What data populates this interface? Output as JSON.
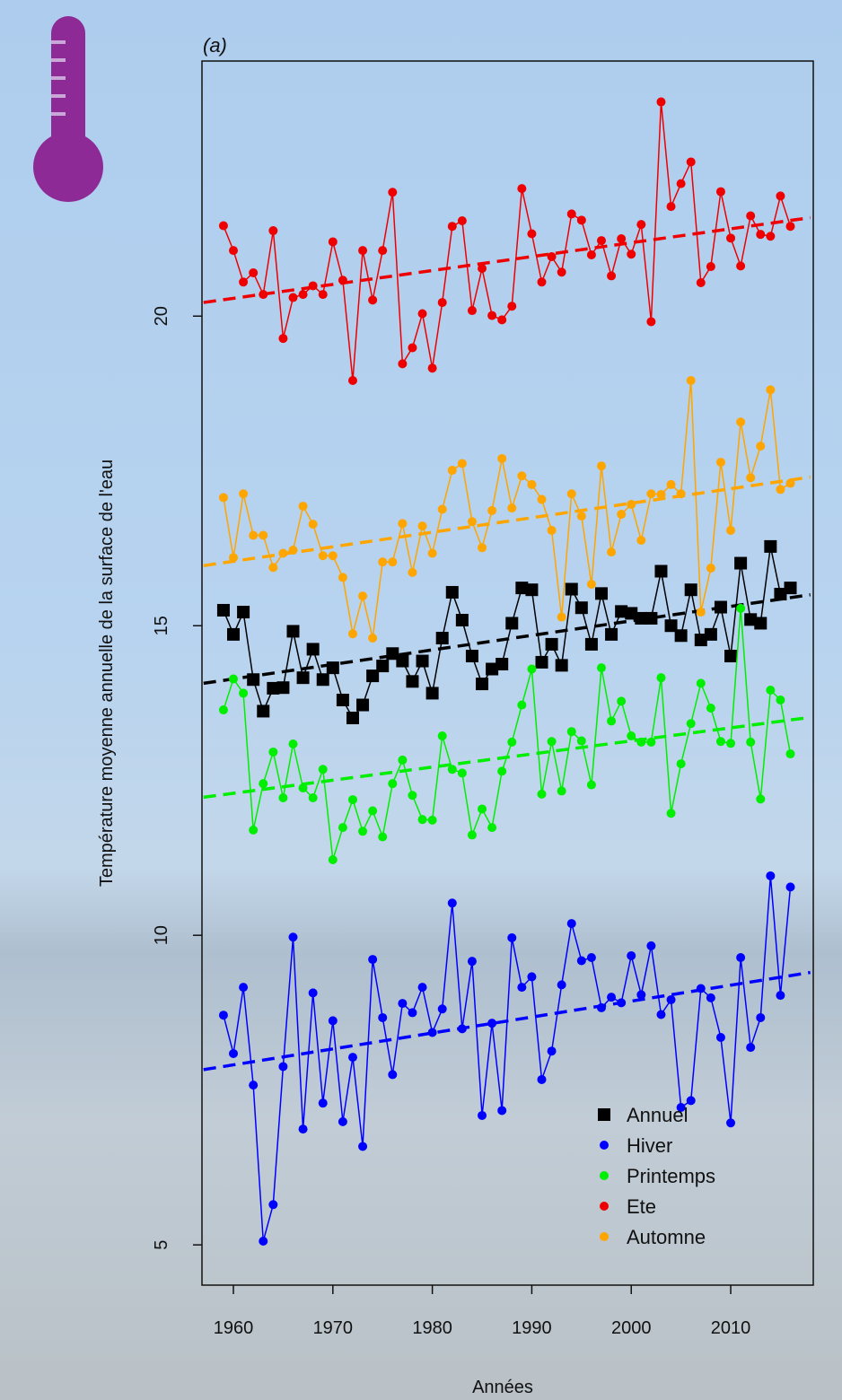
{
  "chart_data": {
    "type": "line",
    "panel_label": "(a)",
    "x_label": "Années",
    "y_label": "Température moyenne annuelle de la surface de l'eau",
    "x": [
      1959,
      1960,
      1961,
      1962,
      1963,
      1964,
      1965,
      1966,
      1967,
      1968,
      1969,
      1970,
      1971,
      1972,
      1973,
      1974,
      1975,
      1976,
      1977,
      1978,
      1979,
      1980,
      1981,
      1982,
      1983,
      1984,
      1985,
      1986,
      1987,
      1988,
      1989,
      1990,
      1991,
      1992,
      1993,
      1994,
      1995,
      1996,
      1997,
      1998,
      1999,
      2000,
      2001,
      2002,
      2003,
      2004,
      2005,
      2006,
      2007,
      2008,
      2009,
      2010,
      2011,
      2012,
      2013,
      2014,
      2015,
      2016
    ],
    "xlim": [
      1956.84,
      2018.3
    ],
    "xticks": [
      1960,
      1970,
      1980,
      1990,
      2000,
      2010
    ],
    "ylim": [
      4.35,
      24.12
    ],
    "yticks": [
      5,
      10,
      15,
      20
    ],
    "trend_x": [
      1957,
      2018
    ],
    "legend": "bottom-right",
    "series": [
      {
        "name": "Annuel",
        "color": "#000000",
        "marker": "square",
        "trend": [
          14.07,
          15.5
        ],
        "values": [
          15.25,
          14.86,
          15.22,
          14.13,
          13.62,
          13.99,
          14.0,
          14.91,
          14.16,
          14.62,
          14.13,
          14.32,
          13.8,
          13.51,
          13.72,
          14.19,
          14.35,
          14.55,
          14.43,
          14.1,
          14.43,
          13.91,
          14.8,
          15.54,
          15.09,
          14.51,
          14.06,
          14.3,
          14.38,
          15.04,
          15.61,
          15.58,
          14.41,
          14.7,
          14.36,
          15.59,
          15.29,
          14.7,
          15.52,
          14.86,
          15.23,
          15.2,
          15.12,
          15.12,
          15.88,
          15.0,
          14.84,
          15.58,
          14.77,
          14.86,
          15.3,
          14.51,
          16.01,
          15.1,
          15.04,
          16.28,
          15.51,
          15.61
        ]
      },
      {
        "name": "Hiver",
        "color": "#0000ff",
        "marker": "circle",
        "trend": [
          7.83,
          9.4
        ],
        "values": [
          8.71,
          8.09,
          9.16,
          7.58,
          5.06,
          5.65,
          7.88,
          9.97,
          6.87,
          9.07,
          7.29,
          8.62,
          6.99,
          8.03,
          6.59,
          9.61,
          8.67,
          7.75,
          8.9,
          8.75,
          9.16,
          8.43,
          8.81,
          10.52,
          8.49,
          9.58,
          7.09,
          8.58,
          7.17,
          9.96,
          9.16,
          9.33,
          7.67,
          8.13,
          9.2,
          10.19,
          9.59,
          9.64,
          8.83,
          9.0,
          8.91,
          9.67,
          9.04,
          9.83,
          8.72,
          8.96,
          7.22,
          7.33,
          9.14,
          8.99,
          8.35,
          6.97,
          9.64,
          8.19,
          8.67,
          10.96,
          9.03,
          10.78
        ]
      },
      {
        "name": "Printemps",
        "color": "#00ee00",
        "marker": "circle",
        "trend": [
          12.23,
          13.52
        ],
        "values": [
          13.64,
          14.14,
          13.91,
          11.7,
          12.45,
          12.96,
          12.22,
          13.09,
          12.38,
          12.22,
          12.68,
          11.22,
          11.74,
          12.19,
          11.68,
          12.01,
          11.59,
          12.45,
          12.83,
          12.26,
          11.87,
          11.86,
          13.22,
          12.68,
          12.62,
          11.62,
          12.04,
          11.74,
          12.65,
          13.12,
          13.72,
          14.3,
          12.28,
          13.13,
          12.33,
          13.29,
          13.14,
          12.43,
          14.32,
          13.46,
          13.78,
          13.22,
          13.12,
          13.12,
          14.16,
          11.97,
          12.77,
          13.42,
          14.07,
          13.67,
          13.13,
          13.1,
          15.28,
          13.12,
          12.2,
          13.96,
          13.8,
          12.93
        ]
      },
      {
        "name": "Ete",
        "color": "#ee0000",
        "marker": "circle",
        "trend": [
          20.22,
          21.59
        ],
        "values": [
          21.46,
          21.06,
          20.55,
          20.7,
          20.35,
          21.38,
          19.64,
          20.3,
          20.35,
          20.49,
          20.35,
          21.2,
          20.58,
          18.96,
          21.06,
          20.26,
          21.06,
          22.0,
          19.23,
          19.49,
          20.04,
          19.16,
          20.22,
          21.45,
          21.54,
          20.09,
          20.77,
          20.01,
          19.94,
          20.16,
          22.06,
          21.33,
          20.55,
          20.96,
          20.71,
          21.65,
          21.55,
          20.99,
          21.22,
          20.65,
          21.25,
          21.0,
          21.48,
          19.91,
          23.46,
          21.77,
          22.14,
          22.49,
          20.54,
          20.8,
          22.01,
          21.26,
          20.81,
          21.62,
          21.32,
          21.29,
          21.94,
          21.45
        ]
      },
      {
        "name": "Automne",
        "color": "#ffa500",
        "marker": "circle",
        "trend": [
          15.97,
          17.4
        ],
        "values": [
          17.07,
          16.1,
          17.13,
          16.46,
          16.46,
          15.94,
          16.17,
          16.22,
          16.93,
          16.64,
          16.13,
          16.13,
          15.78,
          14.87,
          15.48,
          14.8,
          16.03,
          16.03,
          16.65,
          15.86,
          16.61,
          16.17,
          16.88,
          17.51,
          17.62,
          16.68,
          16.26,
          16.86,
          17.7,
          16.9,
          17.42,
          17.28,
          17.04,
          16.54,
          15.14,
          17.13,
          16.77,
          15.67,
          17.58,
          16.19,
          16.8,
          16.96,
          16.38,
          17.13,
          17.12,
          17.28,
          17.13,
          18.96,
          15.22,
          15.93,
          17.64,
          16.54,
          18.29,
          17.39,
          17.9,
          18.81,
          17.2,
          17.3
        ]
      }
    ]
  }
}
